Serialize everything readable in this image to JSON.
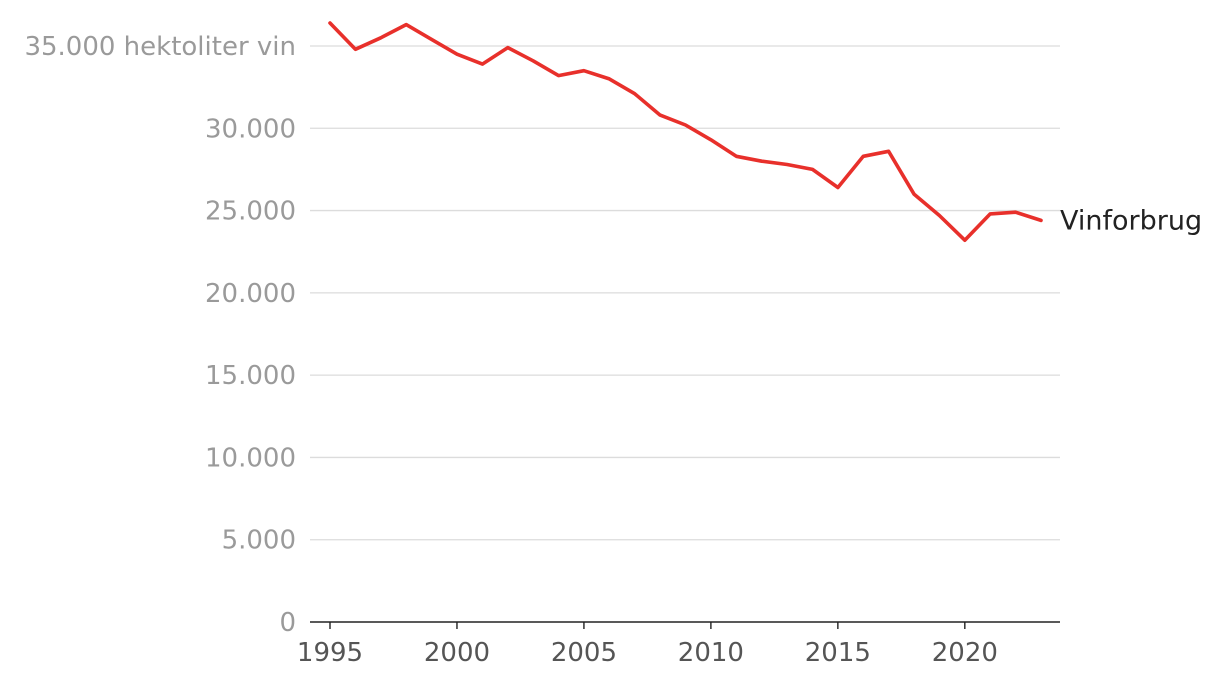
{
  "chart_data": {
    "type": "line",
    "title": "",
    "xlabel": "",
    "ylabel": "",
    "y_unit_label": "hektoliter vin",
    "xlim": [
      1995,
      2024.5
    ],
    "ylim": [
      0,
      35000
    ],
    "grid": true,
    "y_ticks": [
      0,
      5000,
      10000,
      15000,
      20000,
      25000,
      30000,
      35000
    ],
    "y_tick_labels": [
      "0",
      "5.000",
      "10.000",
      "15.000",
      "20.000",
      "25.000",
      "30.000",
      "35.000 hektoliter vin"
    ],
    "x_ticks": [
      1995,
      2000,
      2005,
      2010,
      2015,
      2020
    ],
    "x_tick_labels": [
      "1995",
      "2000",
      "2005",
      "2010",
      "2015",
      "2020"
    ],
    "color": "#e8302b",
    "series": [
      {
        "name": "Vinforbrug",
        "x": [
          1995,
          1996,
          1997,
          1998,
          1999,
          2000,
          2001,
          2002,
          2003,
          2004,
          2005,
          2006,
          2007,
          2008,
          2009,
          2010,
          2011,
          2012,
          2013,
          2014,
          2015,
          2016,
          2017,
          2018,
          2019,
          2020,
          2021,
          2022,
          2023
        ],
        "values": [
          36400,
          34800,
          35500,
          36300,
          35400,
          34500,
          33900,
          34900,
          34100,
          33200,
          33500,
          33000,
          32100,
          30800,
          30200,
          29300,
          28300,
          28000,
          27800,
          27500,
          26400,
          28300,
          28600,
          26000,
          24700,
          23200,
          24800,
          24900,
          24400
        ]
      }
    ]
  }
}
